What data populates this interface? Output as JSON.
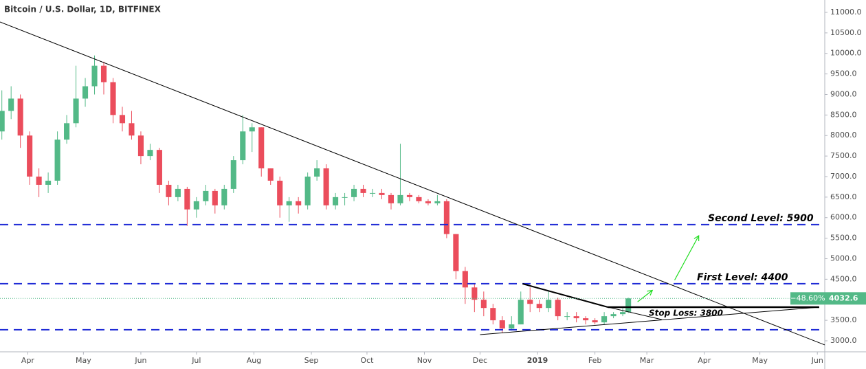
{
  "chart_data": {
    "type": "candlestick",
    "title": "Bitcoin / U.S. Dollar, 1D, BITFINEX",
    "x": [
      17,
      22,
      27,
      32,
      37,
      42,
      47,
      52,
      57,
      62,
      67,
      72,
      77,
      82,
      87,
      92,
      97,
      102,
      107,
      112,
      117,
      122,
      127,
      132,
      137,
      142,
      147,
      152,
      157,
      162,
      167,
      172,
      177,
      182,
      187,
      192,
      197,
      202,
      207,
      212,
      217,
      222,
      227,
      232,
      237,
      242,
      247,
      252,
      257,
      262,
      267,
      272,
      277,
      282,
      287,
      292,
      297,
      302,
      307,
      312,
      317,
      322,
      327,
      332,
      337,
      342,
      347,
      352,
      355
    ],
    "open": [
      8100,
      8600,
      8900,
      8000,
      7000,
      6800,
      6900,
      7900,
      8300,
      8900,
      9200,
      9700,
      9300,
      8500,
      8300,
      8000,
      7500,
      7650,
      6800,
      6500,
      6700,
      6200,
      6400,
      6650,
      6300,
      6700,
      7400,
      8100,
      8200,
      7200,
      6900,
      6300,
      6400,
      6300,
      7000,
      7200,
      6300,
      6500,
      6500,
      6700,
      6600,
      6600,
      6550,
      6350,
      6550,
      6500,
      6400,
      6350,
      6400,
      5600,
      4700,
      4300,
      4000,
      3800,
      3500,
      3300,
      3400,
      4000,
      3900,
      3800,
      4000,
      3600,
      3600,
      3550,
      3500,
      3450,
      3600,
      3650,
      3700
    ],
    "high": [
      9100,
      9200,
      9000,
      8100,
      7200,
      7100,
      8100,
      8500,
      9700,
      9400,
      9950,
      9800,
      9400,
      8700,
      8600,
      8100,
      7800,
      7700,
      6900,
      6800,
      6750,
      6500,
      6800,
      6700,
      6800,
      7500,
      8500,
      8300,
      8200,
      7200,
      7000,
      6500,
      6500,
      7100,
      7400,
      7300,
      6600,
      6600,
      6800,
      6800,
      6700,
      6700,
      6600,
      7800,
      6600,
      6550,
      6450,
      6550,
      6450,
      5600,
      4800,
      4400,
      4200,
      3900,
      3600,
      3600,
      4200,
      4300,
      4000,
      4200,
      4050,
      3700,
      3700,
      3600,
      3550,
      3700,
      3700,
      3800,
      4050
    ],
    "low": [
      7900,
      8400,
      7700,
      6800,
      6500,
      6600,
      6800,
      7800,
      8200,
      8700,
      9000,
      9000,
      8300,
      8100,
      7900,
      7300,
      7400,
      6600,
      6300,
      6400,
      5800,
      6000,
      6300,
      6100,
      6200,
      6600,
      7300,
      7600,
      7000,
      6800,
      6000,
      5900,
      6100,
      6200,
      6900,
      6200,
      6200,
      6300,
      6400,
      6500,
      6500,
      6450,
      6200,
      6300,
      6400,
      6350,
      6300,
      6300,
      5500,
      4500,
      3900,
      3700,
      3600,
      3400,
      3200,
      3250,
      3400,
      3700,
      3700,
      3700,
      3500,
      3500,
      3450,
      3400,
      3400,
      3400,
      3550,
      3600,
      3680
    ],
    "close": [
      8600,
      8900,
      8000,
      7000,
      6800,
      6900,
      7900,
      8300,
      8900,
      9200,
      9700,
      9300,
      8500,
      8300,
      8000,
      7500,
      7650,
      6800,
      6500,
      6700,
      6200,
      6400,
      6650,
      6300,
      6700,
      7400,
      8100,
      8200,
      7200,
      6900,
      6300,
      6400,
      6300,
      7000,
      7200,
      6300,
      6500,
      6500,
      6700,
      6600,
      6600,
      6550,
      6350,
      6550,
      6500,
      6400,
      6350,
      6400,
      5600,
      4700,
      4300,
      4000,
      3800,
      3500,
      3300,
      3400,
      4000,
      3900,
      3800,
      4000,
      3600,
      3600,
      3550,
      3500,
      3450,
      3600,
      3650,
      3700,
      4032.6
    ],
    "up_color": "#53b987",
    "down_color": "#eb4d5c",
    "price_change_label": "−48.60%",
    "xlim": [
      16,
      461
    ],
    "ylim": [
      2732,
      11301
    ],
    "xticks": [
      {
        "value": 31,
        "label": "Apr"
      },
      {
        "value": 61,
        "label": "May"
      },
      {
        "value": 92,
        "label": "Jun"
      },
      {
        "value": 122,
        "label": "Jul"
      },
      {
        "value": 153,
        "label": "Aug"
      },
      {
        "value": 184,
        "label": "Sep"
      },
      {
        "value": 214,
        "label": "Oct"
      },
      {
        "value": 245,
        "label": "Nov"
      },
      {
        "value": 275,
        "label": "Dec"
      },
      {
        "value": 306,
        "label": "2019"
      },
      {
        "value": 337,
        "label": "Feb"
      },
      {
        "value": 365,
        "label": "Mar"
      },
      {
        "value": 396,
        "label": "Apr"
      },
      {
        "value": 426,
        "label": "May"
      },
      {
        "value": 457,
        "label": "Jun"
      }
    ],
    "yticks": [
      {
        "value": 3000,
        "label": "3000.0"
      },
      {
        "value": 3500,
        "label": "3500.0"
      },
      {
        "value": 4000,
        "label": "4000.0"
      },
      {
        "value": 4500,
        "label": "4500.0"
      },
      {
        "value": 5000,
        "label": "5000.0"
      },
      {
        "value": 5500,
        "label": "5500.0"
      },
      {
        "value": 6000,
        "label": "6000.0"
      },
      {
        "value": 6500,
        "label": "6500.0"
      },
      {
        "value": 7000,
        "label": "7000.0"
      },
      {
        "value": 7500,
        "label": "7500.0"
      },
      {
        "value": 8000,
        "label": "8000.0"
      },
      {
        "value": 8500,
        "label": "8500.0"
      },
      {
        "value": 9000,
        "label": "9000.0"
      },
      {
        "value": 9500,
        "label": "9500.0"
      },
      {
        "value": 10000,
        "label": "10000.0"
      },
      {
        "value": 10500,
        "label": "10500.0"
      },
      {
        "value": 11000,
        "label": "11000.0"
      }
    ],
    "levels": [
      {
        "value": 5830,
        "color": "#1f2bd6"
      },
      {
        "value": 4390,
        "color": "#1f2bd6"
      },
      {
        "value": 3270,
        "color": "#1f2bd6"
      }
    ],
    "trendlines": [
      {
        "points": [
          [
            16,
            10766
          ],
          [
            461,
            2900
          ]
        ],
        "color": "#000000",
        "width": 1
      },
      {
        "points": [
          [
            298,
            4389
          ],
          [
            344,
            3820
          ]
        ],
        "color": "#000000",
        "width": 2
      },
      {
        "points": [
          [
            344,
            3820
          ],
          [
            373,
            3519
          ]
        ],
        "color": "#000000",
        "width": 1
      },
      {
        "points": [
          [
            275,
            3150
          ],
          [
            458,
            3820
          ]
        ],
        "color": "#000000",
        "width": 1
      },
      {
        "points": [
          [
            344,
            3820
          ],
          [
            458,
            3820
          ]
        ],
        "color": "#000000",
        "width": 2.5
      }
    ],
    "arrows": [
      {
        "points": [
          [
            360,
            3950
          ],
          [
            368,
            4230
          ]
        ],
        "color": "#22dd22"
      },
      {
        "points": [
          [
            380,
            4480
          ],
          [
            393,
            5560
          ]
        ],
        "color": "#22dd22"
      }
    ],
    "annotations": [
      "Second Level: 5900",
      "First Level: 4400",
      "Stop Loss: 3800"
    ]
  }
}
